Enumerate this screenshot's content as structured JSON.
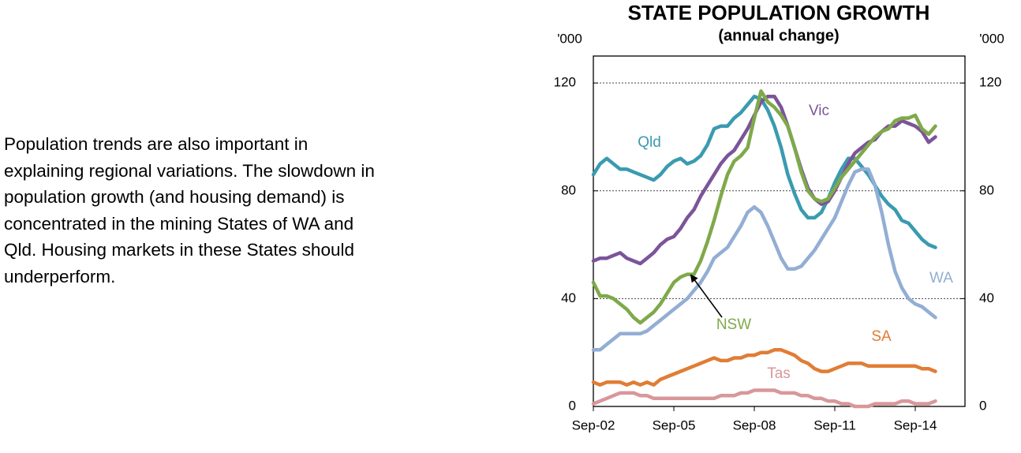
{
  "text_lines": [
    "Population trends are also important in",
    "explaining regional variations.  The slowdown in",
    "population growth (and housing demand) is",
    "concentrated in the mining States of WA and",
    "Qld.  Housing markets in these States should",
    "underperform."
  ],
  "chart_data": {
    "type": "line",
    "title": "STATE POPULATION GROWTH",
    "subtitle": "(annual change)",
    "ylabel": "'000",
    "y2label": "'000",
    "ylim": [
      0,
      130
    ],
    "yticks": [
      0,
      40,
      80,
      120
    ],
    "y2lim": [
      0,
      130
    ],
    "y2ticks": [
      0,
      40,
      80,
      120
    ],
    "grid": true,
    "categories": [
      "Sep-02",
      null,
      null,
      null,
      null,
      null,
      null,
      null,
      null,
      null,
      null,
      null,
      "Sep-05",
      null,
      null,
      null,
      null,
      null,
      null,
      null,
      null,
      null,
      null,
      null,
      "Sep-08",
      null,
      null,
      null,
      null,
      null,
      null,
      null,
      null,
      null,
      null,
      null,
      "Sep-11",
      null,
      null,
      null,
      null,
      null,
      null,
      null,
      null,
      null,
      null,
      null,
      "Sep-14",
      null,
      null,
      null
    ],
    "series": [
      {
        "name": "Qld",
        "color": "#3a9bb0",
        "values": [
          86,
          90,
          92,
          90,
          88,
          88,
          87,
          86,
          85,
          84,
          86,
          89,
          91,
          92,
          90,
          91,
          93,
          97,
          103,
          104,
          104,
          107,
          109,
          112,
          115,
          114,
          110,
          104,
          96,
          86,
          79,
          73,
          70,
          70,
          72,
          77,
          83,
          88,
          92,
          92,
          89,
          86,
          82,
          78,
          75,
          73,
          69,
          68,
          65,
          62,
          60,
          59
        ]
      },
      {
        "name": "Vic",
        "color": "#7b549a",
        "values": [
          54,
          55,
          55,
          56,
          57,
          55,
          54,
          53,
          55,
          57,
          60,
          62,
          63,
          66,
          70,
          73,
          78,
          82,
          86,
          90,
          93,
          95,
          99,
          103,
          108,
          113,
          115,
          115,
          111,
          104,
          96,
          88,
          81,
          77,
          75,
          76,
          80,
          85,
          90,
          94,
          96,
          98,
          99,
          102,
          104,
          104,
          106,
          105,
          104,
          102,
          98,
          100
        ]
      },
      {
        "name": "NSW",
        "color": "#7fa94a",
        "values": [
          46,
          41,
          41,
          40,
          38,
          36,
          33,
          31,
          33,
          35,
          38,
          42,
          46,
          48,
          49,
          49,
          54,
          61,
          69,
          78,
          86,
          91,
          93,
          96,
          107,
          117,
          113,
          111,
          108,
          104,
          96,
          87,
          80,
          77,
          76,
          77,
          81,
          85,
          88,
          91,
          94,
          97,
          100,
          102,
          103,
          106,
          107,
          107,
          108,
          103,
          101,
          104
        ]
      },
      {
        "name": "WA",
        "color": "#93aed4",
        "values": [
          21,
          21,
          23,
          25,
          27,
          27,
          27,
          27,
          28,
          30,
          32,
          34,
          36,
          38,
          40,
          43,
          46,
          50,
          55,
          57,
          59,
          63,
          67,
          72,
          74,
          72,
          67,
          61,
          55,
          51,
          51,
          52,
          55,
          58,
          62,
          66,
          70,
          76,
          82,
          87,
          88,
          88,
          82,
          72,
          60,
          50,
          44,
          40,
          38,
          37,
          35,
          33
        ]
      },
      {
        "name": "SA",
        "color": "#e07d35",
        "values": [
          9,
          8,
          9,
          9,
          9,
          8,
          9,
          8,
          9,
          8,
          10,
          11,
          12,
          13,
          14,
          15,
          16,
          17,
          18,
          17,
          17,
          18,
          18,
          19,
          19,
          20,
          20,
          21,
          21,
          20,
          19,
          17,
          16,
          14,
          13,
          13,
          14,
          15,
          16,
          16,
          16,
          15,
          15,
          15,
          15,
          15,
          15,
          15,
          15,
          14,
          14,
          13
        ]
      },
      {
        "name": "Tas",
        "color": "#d9979a",
        "values": [
          1,
          2,
          3,
          4,
          5,
          5,
          5,
          4,
          4,
          3,
          3,
          3,
          3,
          3,
          3,
          3,
          3,
          3,
          3,
          4,
          4,
          4,
          5,
          5,
          6,
          6,
          6,
          6,
          5,
          5,
          5,
          4,
          4,
          3,
          3,
          2,
          2,
          1,
          1,
          0,
          0,
          0,
          1,
          1,
          1,
          1,
          2,
          2,
          1,
          1,
          1,
          2
        ]
      }
    ]
  }
}
